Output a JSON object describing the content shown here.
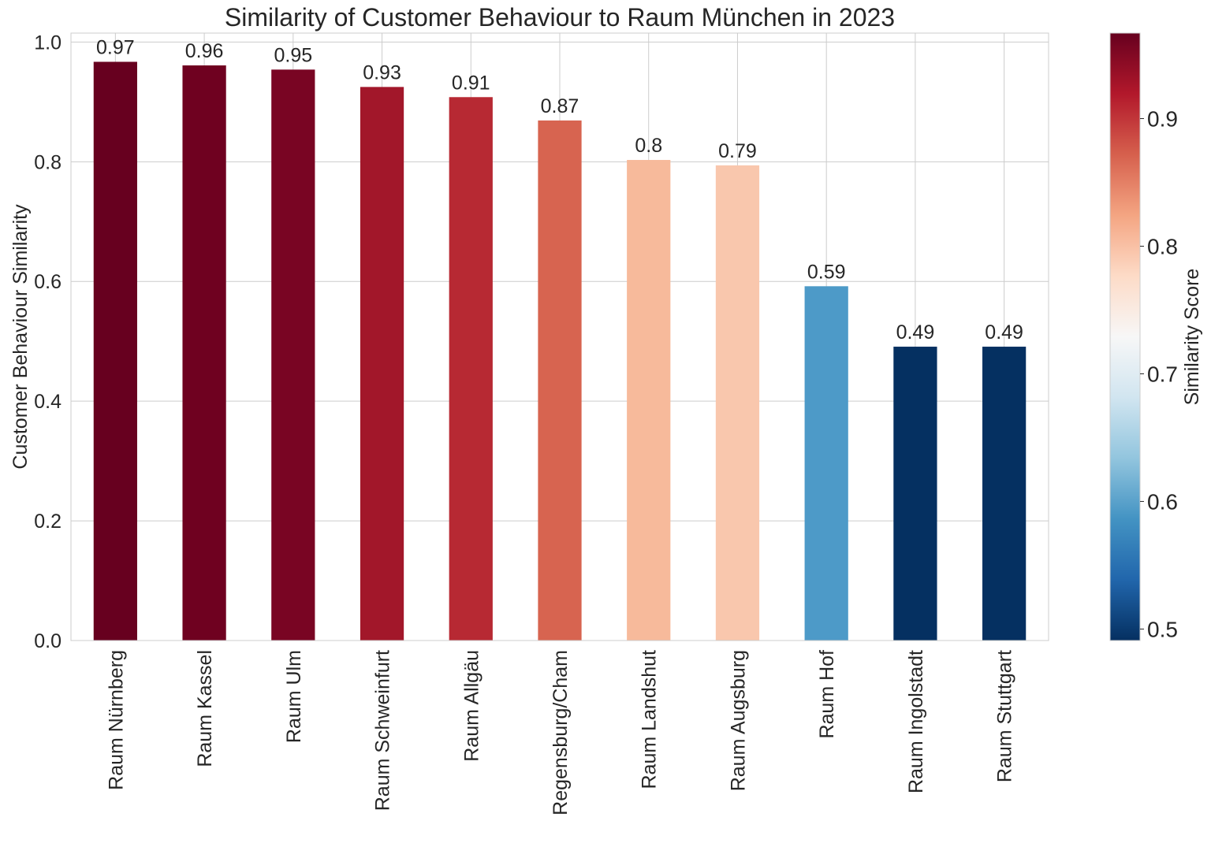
{
  "chart_data": {
    "type": "bar",
    "title": "Similarity of Customer Behaviour to Raum München in 2023",
    "xlabel": "",
    "ylabel": "Customer Behaviour Similarity",
    "categories": [
      "Raum Nürnberg",
      "Raum Kassel",
      "Raum Ulm",
      "Raum Schweinfurt",
      "Raum Allgäu",
      "Regensburg/Cham",
      "Raum Landshut",
      "Raum Augsburg",
      "Raum Hof",
      "Raum Ingolstadt",
      "Raum Stuttgart"
    ],
    "values": [
      0.967,
      0.961,
      0.954,
      0.925,
      0.908,
      0.869,
      0.803,
      0.794,
      0.592,
      0.491,
      0.491
    ],
    "data_labels": [
      "0.97",
      "0.96",
      "0.95",
      "0.93",
      "0.91",
      "0.87",
      "0.8",
      "0.79",
      "0.59",
      "0.49",
      "0.49"
    ],
    "bar_colors": [
      "#67001f",
      "#6f0120",
      "#790523",
      "#a2172a",
      "#b72933",
      "#d76450",
      "#f7ba9b",
      "#f9c7ad",
      "#4d9ac8",
      "#053061",
      "#053061"
    ],
    "ylim": [
      0,
      1.015
    ],
    "yticks": [
      "0.0",
      "0.2",
      "0.4",
      "0.6",
      "0.8",
      "1.0"
    ],
    "grid": true,
    "colorbar": {
      "label": "Similarity Score",
      "colormap": "RdBu_r",
      "range": [
        0.491,
        0.967
      ],
      "ticks": [
        "0.5",
        "0.6",
        "0.7",
        "0.8",
        "0.9"
      ],
      "colors": [
        "#053061",
        "#2166ac",
        "#4393c3",
        "#92c5de",
        "#d1e5f0",
        "#f7f7f7",
        "#fddbc7",
        "#f4a582",
        "#d6604d",
        "#b2182b",
        "#67001f"
      ]
    }
  }
}
